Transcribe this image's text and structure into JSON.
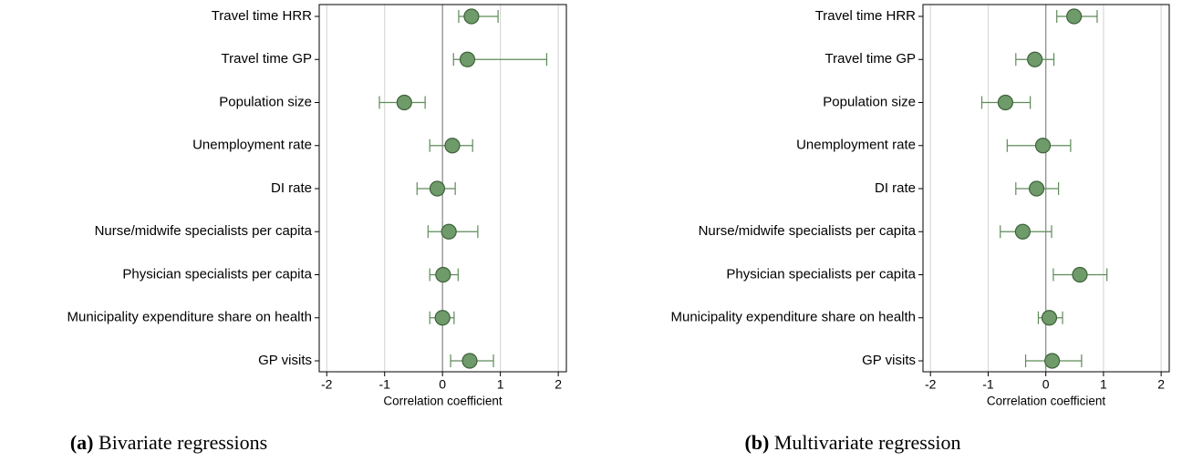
{
  "chart_data": [
    {
      "type": "coefplot",
      "caption_label": "(a)",
      "caption": "Bivariate regressions",
      "xlabel": "Correlation coefficient",
      "categories": [
        "Travel time HRR",
        "Travel time GP",
        "Population size",
        "Unemployment rate",
        "DI rate",
        "Nurse/midwife specialists per capita",
        "Physician specialists per capita",
        "Municipality expenditure share on health",
        "GP visits"
      ],
      "values": [
        0.5,
        0.43,
        -0.66,
        0.17,
        -0.09,
        0.11,
        0.01,
        0.0,
        0.47
      ],
      "lower": [
        0.28,
        0.19,
        -1.09,
        -0.22,
        -0.44,
        -0.25,
        -0.22,
        -0.22,
        0.14
      ],
      "upper": [
        0.96,
        1.8,
        -0.3,
        0.52,
        0.22,
        0.61,
        0.27,
        0.2,
        0.88
      ],
      "xlim": [
        -2.13,
        2.14
      ],
      "xticks": [
        -2,
        -1,
        0,
        1,
        2
      ],
      "grid": true,
      "refline": 0,
      "color": "#6f9a6a"
    },
    {
      "type": "coefplot",
      "caption_label": "(b)",
      "caption": "Multivariate regression",
      "xlabel": "Correlation coefficient",
      "categories": [
        "Travel time HRR",
        "Travel time GP",
        "Population size",
        "Unemployment rate",
        "DI rate",
        "Nurse/midwife specialists per capita",
        "Physician specialists per capita",
        "Municipality expenditure share on health",
        "GP visits"
      ],
      "values": [
        0.49,
        -0.19,
        -0.7,
        -0.05,
        -0.16,
        -0.4,
        0.59,
        0.06,
        0.11
      ],
      "lower": [
        0.19,
        -0.52,
        -1.11,
        -0.67,
        -0.52,
        -0.79,
        0.13,
        -0.13,
        -0.35
      ],
      "upper": [
        0.89,
        0.14,
        -0.27,
        0.43,
        0.22,
        0.1,
        1.06,
        0.29,
        0.62
      ],
      "xlim": [
        -2.13,
        2.14
      ],
      "xticks": [
        -2,
        -1,
        0,
        1,
        2
      ],
      "grid": true,
      "refline": 0,
      "color": "#6f9a6a"
    }
  ]
}
